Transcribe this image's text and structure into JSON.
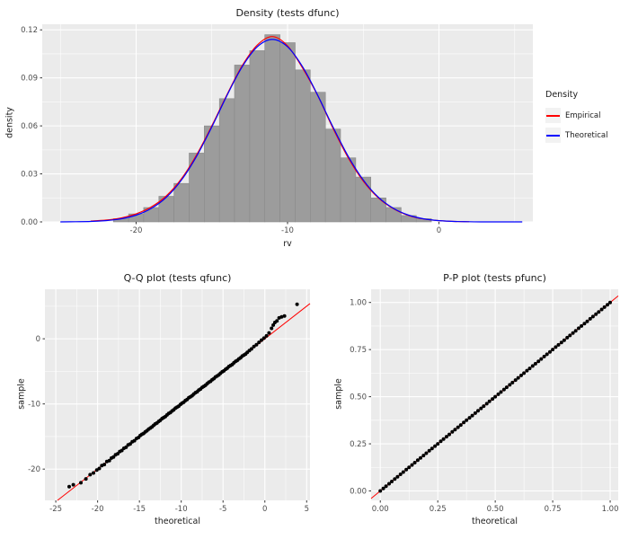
{
  "theme": {
    "background": "#FFFFFF",
    "panel_bg": "#EBEBEB",
    "grid": "#FFFFFF",
    "axis_text": "#4D4D4D",
    "tick_mark": "#333333",
    "point_color": "#000000",
    "empirical_color": "#FF0000",
    "theoretical_color": "#0000FF",
    "histogram_fill": "#9C9C9C",
    "histogram_stroke": "#8A8A8A"
  },
  "chart_data": [
    {
      "id": "density",
      "type": "histogram+density-lines",
      "title": "Density (tests dfunc)",
      "xlabel": "rv",
      "ylabel": "density",
      "xlim": [
        -26.2,
        6.2
      ],
      "ylim": [
        0,
        0.1235
      ],
      "x_ticks": [
        -20,
        -10,
        0
      ],
      "x_tick_labels": [
        "-20",
        "-10",
        "0"
      ],
      "x_minor": [
        -25,
        -15,
        -5,
        5
      ],
      "y_ticks": [
        0,
        0.03,
        0.06,
        0.09,
        0.12
      ],
      "y_tick_labels": [
        "0.00",
        "0.03",
        "0.06",
        "0.09",
        "0.12"
      ],
      "y_minor": [
        0.015,
        0.045,
        0.075,
        0.105
      ],
      "histogram": {
        "bin_width": 1,
        "centers": [
          -21,
          -20,
          -19,
          -18,
          -17,
          -16,
          -15,
          -14,
          -13,
          -12,
          -11,
          -10,
          -9,
          -8,
          -7,
          -6,
          -5,
          -4,
          -3,
          -2,
          -1
        ],
        "heights": [
          0.002,
          0.005,
          0.009,
          0.016,
          0.024,
          0.043,
          0.06,
          0.077,
          0.098,
          0.107,
          0.117,
          0.112,
          0.095,
          0.081,
          0.058,
          0.04,
          0.028,
          0.015,
          0.009,
          0.004,
          0.002
        ]
      },
      "series": [
        {
          "name": "Empirical",
          "color": "#FF0000",
          "x": [
            -23,
            -22,
            -21,
            -20,
            -19,
            -18,
            -17,
            -16,
            -15,
            -14,
            -13,
            -12,
            -11,
            -10,
            -9,
            -8,
            -7,
            -6,
            -5,
            -4,
            -3,
            -2,
            -1,
            0,
            1,
            2
          ],
          "y": [
            0.0005,
            0.0011,
            0.0024,
            0.005,
            0.0093,
            0.0163,
            0.027,
            0.042,
            0.06,
            0.0795,
            0.0975,
            0.1105,
            0.1158,
            0.11,
            0.096,
            0.0788,
            0.0585,
            0.0402,
            0.0255,
            0.015,
            0.0082,
            0.004,
            0.0018,
            0.0008,
            0.0003,
            0.0001
          ]
        },
        {
          "name": "Theoretical",
          "color": "#0000FF",
          "x": [
            -25,
            -24,
            -23,
            -22,
            -21,
            -20,
            -19,
            -18,
            -17,
            -16,
            -15,
            -14,
            -13,
            -12,
            -11,
            -10,
            -9,
            -8,
            -7,
            -6,
            -5,
            -4,
            -3,
            -2,
            -1,
            0,
            1,
            2,
            3,
            4,
            5.5
          ],
          "y": [
            0.0,
            0.0001,
            0.0003,
            0.0008,
            0.0019,
            0.0042,
            0.0084,
            0.0154,
            0.0262,
            0.0411,
            0.0593,
            0.079,
            0.0968,
            0.1094,
            0.114,
            0.1094,
            0.0968,
            0.079,
            0.0593,
            0.0411,
            0.0262,
            0.0154,
            0.0084,
            0.0042,
            0.0019,
            0.0008,
            0.0003,
            0.0001,
            0.0,
            0.0,
            0.0
          ]
        }
      ],
      "legend": {
        "title": "Density",
        "items": [
          {
            "label": "Empirical",
            "color": "#FF0000"
          },
          {
            "label": "Theoretical",
            "color": "#0000FF"
          }
        ]
      }
    },
    {
      "id": "qq",
      "type": "scatter",
      "title": "Q-Q plot (tests qfunc)",
      "xlabel": "theoretical",
      "ylabel": "sample",
      "xlim": [
        -26.3,
        5.4
      ],
      "ylim": [
        -24.8,
        7.6
      ],
      "x_ticks": [
        -25,
        -20,
        -15,
        -10,
        -5,
        0,
        5
      ],
      "x_tick_labels": [
        "-25",
        "-20",
        "-15",
        "-10",
        "-5",
        "0",
        "5"
      ],
      "x_minor": [
        -22.5,
        -17.5,
        -12.5,
        -7.5,
        -2.5,
        2.5
      ],
      "y_ticks": [
        -20,
        -10,
        0
      ],
      "y_tick_labels": [
        "-20",
        "-10",
        "0"
      ],
      "y_minor": [
        -25,
        -15,
        -5,
        5
      ],
      "ref_line": {
        "type": "identity",
        "color": "#FF0000"
      },
      "points": [
        [
          -23.4,
          -22.7
        ],
        [
          -22.9,
          -22.4
        ],
        [
          -22.0,
          -22.1
        ],
        [
          -21.4,
          -21.5
        ],
        [
          -20.9,
          -20.85
        ],
        [
          -20.5,
          -20.6
        ],
        [
          -20.1,
          -20.15
        ],
        [
          -19.8,
          -19.9
        ],
        [
          -19.5,
          -19.45
        ],
        [
          -19.2,
          -19.3
        ],
        [
          -18.9,
          -18.85
        ],
        [
          -18.6,
          -18.7
        ],
        [
          -18.35,
          -18.3
        ],
        [
          -18.1,
          -18.15
        ],
        [
          -17.85,
          -17.8
        ],
        [
          -17.6,
          -17.65
        ],
        [
          -17.35,
          -17.3
        ],
        [
          -17.1,
          -17.15
        ],
        [
          -16.85,
          -16.8
        ],
        [
          -16.6,
          -16.65
        ],
        [
          -16.35,
          -16.3
        ],
        [
          -16.1,
          -16.15
        ],
        [
          -15.85,
          -15.8
        ],
        [
          -15.6,
          -15.65
        ],
        [
          -15.35,
          -15.3
        ],
        [
          -15.1,
          -15.15
        ],
        [
          -14.9,
          -14.85
        ],
        [
          -14.7,
          -14.67
        ],
        [
          -14.5,
          -14.53
        ],
        [
          -14.3,
          -14.28
        ],
        [
          -14.1,
          -14.12
        ],
        [
          -13.9,
          -13.86
        ],
        [
          -13.7,
          -13.7
        ],
        [
          -13.5,
          -13.54
        ],
        [
          -13.3,
          -13.29
        ],
        [
          -13.1,
          -13.07
        ],
        [
          -12.9,
          -12.93
        ],
        [
          -12.7,
          -12.68
        ],
        [
          -12.5,
          -12.52
        ],
        [
          -12.3,
          -12.26
        ],
        [
          -12.1,
          -12.1
        ],
        [
          -11.9,
          -11.94
        ],
        [
          -11.7,
          -11.69
        ],
        [
          -11.5,
          -11.47
        ],
        [
          -11.3,
          -11.33
        ],
        [
          -11.1,
          -11.08
        ],
        [
          -10.9,
          -10.92
        ],
        [
          -10.7,
          -10.66
        ],
        [
          -10.5,
          -10.5
        ],
        [
          -10.3,
          -10.34
        ],
        [
          -10.1,
          -10.09
        ],
        [
          -9.9,
          -9.87
        ],
        [
          -9.7,
          -9.73
        ],
        [
          -9.5,
          -9.48
        ],
        [
          -9.3,
          -9.32
        ],
        [
          -9.1,
          -9.06
        ],
        [
          -8.9,
          -8.9
        ],
        [
          -8.7,
          -8.74
        ],
        [
          -8.5,
          -8.49
        ],
        [
          -8.3,
          -8.27
        ],
        [
          -8.1,
          -8.13
        ],
        [
          -7.9,
          -7.88
        ],
        [
          -7.7,
          -7.72
        ],
        [
          -7.5,
          -7.46
        ],
        [
          -7.3,
          -7.3
        ],
        [
          -7.1,
          -7.14
        ],
        [
          -6.9,
          -6.89
        ],
        [
          -6.7,
          -6.67
        ],
        [
          -6.5,
          -6.53
        ],
        [
          -6.3,
          -6.28
        ],
        [
          -6.1,
          -6.12
        ],
        [
          -5.9,
          -5.86
        ],
        [
          -5.7,
          -5.7
        ],
        [
          -5.5,
          -5.54
        ],
        [
          -5.3,
          -5.29
        ],
        [
          -5.1,
          -5.07
        ],
        [
          -4.9,
          -4.93
        ],
        [
          -4.7,
          -4.68
        ],
        [
          -4.5,
          -4.52
        ],
        [
          -4.3,
          -4.26
        ],
        [
          -4.1,
          -4.1
        ],
        [
          -3.9,
          -3.94
        ],
        [
          -3.7,
          -3.69
        ],
        [
          -3.5,
          -3.47
        ],
        [
          -3.3,
          -3.33
        ],
        [
          -3.1,
          -3.08
        ],
        [
          -2.9,
          -2.92
        ],
        [
          -2.7,
          -2.66
        ],
        [
          -2.5,
          -2.5
        ],
        [
          -2.3,
          -2.34
        ],
        [
          -2.1,
          -2.09
        ],
        [
          -1.85,
          -1.8
        ],
        [
          -1.6,
          -1.55
        ],
        [
          -1.3,
          -1.2
        ],
        [
          -1.0,
          -0.9
        ],
        [
          -0.7,
          -0.55
        ],
        [
          -0.4,
          -0.2
        ],
        [
          -0.1,
          0.1
        ],
        [
          0.2,
          0.45
        ],
        [
          0.5,
          0.9
        ],
        [
          0.8,
          1.6
        ],
        [
          1.0,
          2.1
        ],
        [
          1.2,
          2.5
        ],
        [
          1.45,
          2.75
        ],
        [
          1.7,
          3.2
        ],
        [
          2.0,
          3.35
        ],
        [
          2.35,
          3.5
        ],
        [
          3.85,
          5.3
        ]
      ]
    },
    {
      "id": "pp",
      "type": "scatter",
      "title": "P-P plot (tests pfunc)",
      "xlabel": "theoretical",
      "ylabel": "sample",
      "xlim": [
        -0.04,
        1.035
      ],
      "ylim": [
        -0.05,
        1.07
      ],
      "x_ticks": [
        0,
        0.25,
        0.5,
        0.75,
        1
      ],
      "x_tick_labels": [
        "0.00",
        "0.25",
        "0.50",
        "0.75",
        "1.00"
      ],
      "x_minor": [
        0.125,
        0.375,
        0.625,
        0.875
      ],
      "y_ticks": [
        0,
        0.25,
        0.5,
        0.75,
        1
      ],
      "y_tick_labels": [
        "0.00",
        "0.25",
        "0.50",
        "0.75",
        "1.00"
      ],
      "y_minor": [
        0.125,
        0.375,
        0.625,
        0.875
      ],
      "ref_line": {
        "type": "identity",
        "color": "#FF0000"
      },
      "points_y_equals_x": true,
      "points_x": [
        0.0,
        0.013,
        0.025,
        0.038,
        0.05,
        0.063,
        0.075,
        0.088,
        0.1,
        0.113,
        0.125,
        0.138,
        0.15,
        0.163,
        0.175,
        0.188,
        0.2,
        0.213,
        0.225,
        0.238,
        0.25,
        0.263,
        0.275,
        0.288,
        0.3,
        0.313,
        0.325,
        0.338,
        0.35,
        0.363,
        0.375,
        0.388,
        0.4,
        0.413,
        0.425,
        0.438,
        0.45,
        0.463,
        0.475,
        0.488,
        0.5,
        0.513,
        0.525,
        0.538,
        0.55,
        0.563,
        0.575,
        0.588,
        0.6,
        0.613,
        0.625,
        0.638,
        0.65,
        0.663,
        0.675,
        0.688,
        0.7,
        0.713,
        0.725,
        0.738,
        0.75,
        0.763,
        0.775,
        0.788,
        0.8,
        0.813,
        0.825,
        0.838,
        0.85,
        0.863,
        0.875,
        0.888,
        0.9,
        0.913,
        0.925,
        0.938,
        0.95,
        0.963,
        0.975,
        0.988,
        1.0
      ]
    }
  ]
}
